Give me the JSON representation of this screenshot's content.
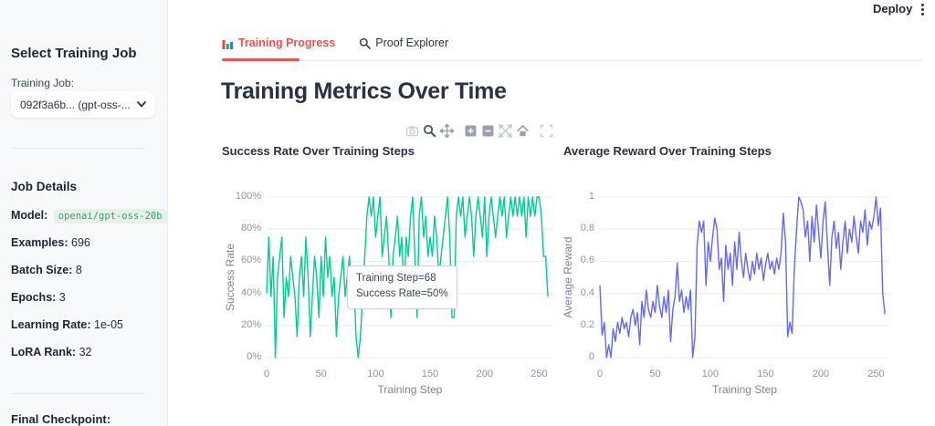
{
  "header": {
    "deploy_label": "Deploy",
    "kebab_icon": "kebab-menu-icon"
  },
  "sidebar": {
    "select_title": "Select Training Job",
    "training_job_label": "Training Job:",
    "dropdown_value": "092f3a6b... (gpt-oss-...",
    "dropdown_icon": "chevron-down-icon",
    "job_details_title": "Job Details",
    "details": [
      {
        "label": "Model:",
        "value": "openai/gpt-oss-20b",
        "style": "code-chip"
      },
      {
        "label": "Examples:",
        "value": "696"
      },
      {
        "label": "Batch Size:",
        "value": "8"
      },
      {
        "label": "Epochs:",
        "value": "3"
      },
      {
        "label": "Learning Rate:",
        "value": "1e-05"
      },
      {
        "label": "LoRA Rank:",
        "value": "32"
      }
    ],
    "final_checkpoint_label": "Final Checkpoint:"
  },
  "tabs": [
    {
      "label": "Training Progress",
      "icon": "bar-chart-icon",
      "active": true
    },
    {
      "label": "Proof Explorer",
      "icon": "magnifier-icon",
      "active": false
    }
  ],
  "page_title": "Training Metrics Over Time",
  "modebar_icons": [
    "camera-icon",
    "zoom-icon",
    "pan-icon",
    "zoom-in-icon",
    "zoom-out-icon",
    "autoscale-icon",
    "home-icon",
    "fullscreen-icon"
  ],
  "tooltip": {
    "line1": "Training Step=68",
    "line2": "Success Rate=50%"
  },
  "colors": {
    "accent_red": "#f0524e",
    "success_line": "#00cc96",
    "reward_line": "#6568f2",
    "chip_text": "#35a06c"
  },
  "chart_data": [
    {
      "type": "line",
      "name": "success-rate",
      "title": "Success Rate Over Training Steps",
      "xlabel": "Training Step",
      "ylabel": "Success Rate",
      "color": "#00cc96",
      "xrange": [
        0,
        263
      ],
      "yrange": [
        0,
        100
      ],
      "grid": true,
      "yticks": [
        {
          "v": 0,
          "label": "0%"
        },
        {
          "v": 20,
          "label": "20%"
        },
        {
          "v": 40,
          "label": "40%"
        },
        {
          "v": 60,
          "label": "60%"
        },
        {
          "v": 80,
          "label": "80%"
        },
        {
          "v": 100,
          "label": "100%"
        }
      ],
      "xticks": [
        {
          "v": 0,
          "label": "0"
        },
        {
          "v": 50,
          "label": "50"
        },
        {
          "v": 100,
          "label": "100"
        },
        {
          "v": 150,
          "label": "150"
        },
        {
          "v": 200,
          "label": "200"
        },
        {
          "v": 250,
          "label": "250"
        }
      ],
      "x": {
        "start": 0,
        "step": 2
      },
      "y": [
        40,
        75,
        38,
        63,
        0,
        50,
        63,
        75,
        25,
        50,
        38,
        63,
        50,
        38,
        13,
        50,
        63,
        38,
        75,
        50,
        13,
        38,
        63,
        50,
        25,
        63,
        38,
        75,
        50,
        63,
        38,
        50,
        13,
        38,
        50,
        63,
        38,
        50,
        63,
        38,
        50,
        13,
        0,
        13,
        38,
        63,
        88,
        100,
        88,
        100,
        75,
        88,
        100,
        63,
        75,
        88,
        63,
        25,
        63,
        75,
        88,
        63,
        75,
        38,
        75,
        63,
        88,
        100,
        63,
        25,
        88,
        100,
        75,
        88,
        63,
        75,
        63,
        88,
        75,
        50,
        63,
        75,
        88,
        100,
        75,
        25,
        25,
        88,
        100,
        88,
        100,
        75,
        88,
        100,
        88,
        63,
        88,
        100,
        88,
        75,
        100,
        63,
        88,
        100,
        88,
        75,
        88,
        100,
        88,
        100,
        75,
        88,
        100,
        88,
        100,
        88,
        100,
        88,
        100,
        75,
        100,
        88,
        100,
        88,
        100,
        100,
        88,
        63,
        63,
        38
      ]
    },
    {
      "type": "line",
      "name": "average-reward",
      "title": "Average Reward Over Training Steps",
      "xlabel": "Training Step",
      "ylabel": "Average Reward",
      "color": "#6568f2",
      "xrange": [
        0,
        262
      ],
      "yrange": [
        0,
        1
      ],
      "grid": true,
      "yticks": [
        {
          "v": 0,
          "label": "0"
        },
        {
          "v": 0.2,
          "label": "0.2"
        },
        {
          "v": 0.4,
          "label": "0.4"
        },
        {
          "v": 0.6,
          "label": "0.6"
        },
        {
          "v": 0.8,
          "label": "0.8"
        },
        {
          "v": 1,
          "label": "1"
        }
      ],
      "xticks": [
        {
          "v": 0,
          "label": "0"
        },
        {
          "v": 50,
          "label": "50"
        },
        {
          "v": 100,
          "label": "100"
        },
        {
          "v": 150,
          "label": "150"
        },
        {
          "v": 200,
          "label": "200"
        },
        {
          "v": 250,
          "label": "250"
        }
      ],
      "x": {
        "start": 0,
        "step": 2
      },
      "y": [
        0.45,
        0.14,
        0.22,
        0.0,
        0.08,
        0.0,
        0.18,
        0.1,
        0.22,
        0.15,
        0.25,
        0.18,
        0.22,
        0.13,
        0.25,
        0.3,
        0.2,
        0.28,
        0.08,
        0.35,
        0.25,
        0.42,
        0.3,
        0.25,
        0.35,
        0.28,
        0.45,
        0.32,
        0.25,
        0.38,
        0.28,
        0.42,
        0.1,
        0.3,
        0.38,
        0.59,
        0.35,
        0.42,
        0.28,
        0.38,
        0.3,
        0.42,
        0.0,
        0.13,
        0.7,
        0.85,
        0.78,
        0.85,
        0.45,
        0.72,
        0.6,
        0.75,
        0.87,
        0.8,
        0.55,
        0.62,
        0.35,
        0.7,
        0.55,
        0.65,
        0.45,
        0.72,
        0.55,
        0.78,
        0.6,
        0.5,
        0.65,
        0.55,
        0.48,
        0.6,
        0.52,
        0.65,
        0.55,
        0.62,
        0.48,
        0.58,
        0.65,
        0.55,
        0.6,
        0.52,
        0.62,
        0.55,
        0.65,
        0.9,
        0.72,
        0.13,
        0.22,
        0.15,
        0.55,
        0.8,
        1.0,
        0.97,
        0.92,
        0.75,
        0.85,
        0.6,
        0.88,
        0.72,
        0.95,
        0.78,
        0.62,
        0.85,
        0.97,
        0.7,
        0.45,
        0.75,
        0.85,
        0.68,
        0.78,
        0.55,
        0.72,
        0.85,
        0.65,
        0.8,
        0.72,
        0.88,
        0.75,
        0.65,
        0.85,
        0.78,
        0.92,
        0.7,
        0.85,
        0.8,
        0.88,
        1.0,
        0.82,
        0.93,
        0.4,
        0.27
      ]
    }
  ]
}
